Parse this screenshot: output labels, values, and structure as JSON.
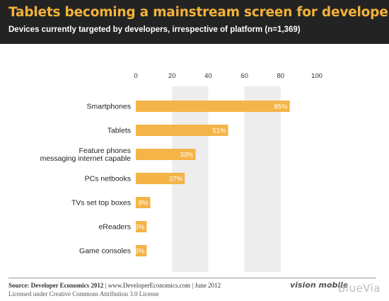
{
  "header": {
    "title": "Tablets becoming a mainstream screen for developers",
    "subtitle": "Devices currently targeted by developers, irrespective of platform (n=1,369)"
  },
  "footer": {
    "source_label": "Source: Developer Economics 2012",
    "source_rest": " | www.DeveloperEconomics.com | June 2012",
    "license": "Licensed under Creative Commons Attribution 3.0 License",
    "logo_visionmobile": "vision mobile",
    "logo_bluevia": "BlueVia"
  },
  "chart_data": {
    "type": "bar",
    "orientation": "horizontal",
    "categories": [
      [
        "Smartphones"
      ],
      [
        "Tablets"
      ],
      [
        "Feature phones",
        "messaging internet capable"
      ],
      [
        "PCs netbooks"
      ],
      [
        "TVs set top boxes"
      ],
      [
        "eReaders"
      ],
      [
        "Game consoles"
      ]
    ],
    "values": [
      85,
      51,
      33,
      27,
      8,
      6,
      6
    ],
    "value_labels": [
      "85%",
      "51%",
      "33%",
      "27%",
      "8%",
      "6%",
      "6%"
    ],
    "xlim": [
      0,
      100
    ],
    "x_ticks": [
      "0",
      "20",
      "40",
      "60",
      "80",
      "100"
    ],
    "grid": "alternating vertical bands",
    "colors": {
      "bar": "#f5b447",
      "band": "#ededed",
      "label": "#ffffff",
      "header_bg": "#232323",
      "title": "#f4b23a"
    }
  }
}
